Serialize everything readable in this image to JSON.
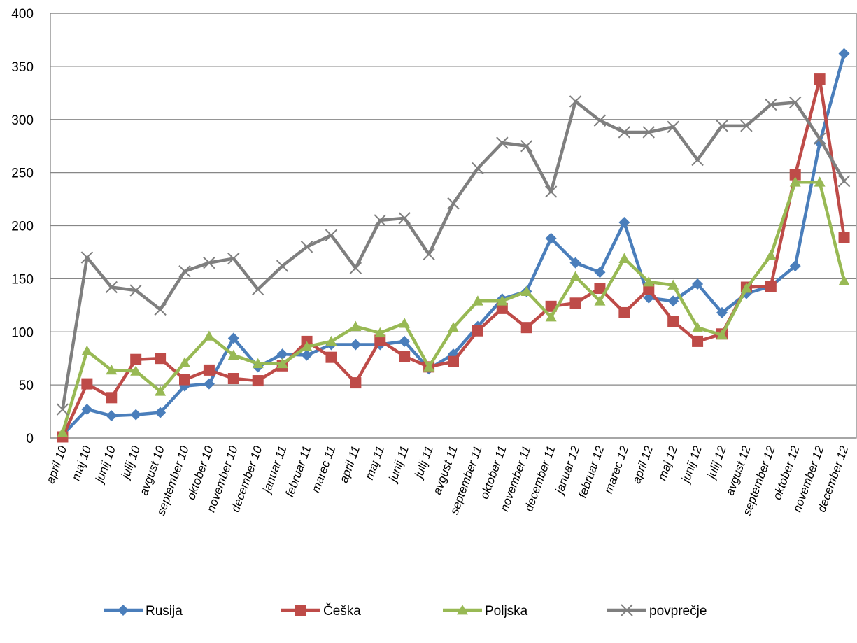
{
  "chart_data": {
    "type": "line",
    "categories": [
      "april 10",
      "maj 10",
      "junij 10",
      "julij 10",
      "avgust 10",
      "september 10",
      "oktober 10",
      "november 10",
      "december 10",
      "januar 11",
      "februar 11",
      "marec 11",
      "april 11",
      "maj 11",
      "junij 11",
      "julij 11",
      "avgust 11",
      "september 11",
      "oktober 11",
      "november 11",
      "december 11",
      "januar 12",
      "februar 12",
      "marec 12",
      "april 12",
      "maj 12",
      "junij 12",
      "julij 12",
      "avgust 12",
      "september 12",
      "oktober 12",
      "november 12",
      "december 12"
    ],
    "series": [
      {
        "name": "Rusija",
        "color": "#4a7ebb",
        "marker": "diamond",
        "values": [
          3,
          27,
          21,
          22,
          24,
          49,
          51,
          94,
          67,
          79,
          78,
          88,
          88,
          88,
          91,
          65,
          79,
          105,
          131,
          138,
          188,
          165,
          156,
          203,
          132,
          129,
          145,
          118,
          136,
          143,
          162,
          278,
          362
        ]
      },
      {
        "name": "Češka",
        "color": "#be4b48",
        "marker": "square",
        "values": [
          1,
          51,
          38,
          74,
          75,
          55,
          64,
          56,
          54,
          68,
          91,
          76,
          52,
          92,
          77,
          67,
          72,
          101,
          122,
          104,
          124,
          127,
          141,
          118,
          140,
          110,
          91,
          98,
          142,
          143,
          248,
          338,
          189
        ]
      },
      {
        "name": "Poljska",
        "color": "#98b954",
        "marker": "triangle",
        "values": [
          5,
          82,
          64,
          63,
          44,
          71,
          96,
          78,
          70,
          70,
          86,
          91,
          105,
          99,
          108,
          67,
          104,
          129,
          129,
          138,
          114,
          152,
          129,
          169,
          147,
          144,
          104,
          97,
          141,
          172,
          241,
          241,
          148
        ]
      },
      {
        "name": "povprečje",
        "color": "#7f7f7f",
        "marker": "x",
        "values": [
          27,
          170,
          142,
          139,
          121,
          157,
          165,
          169,
          140,
          162,
          180,
          191,
          160,
          205,
          207,
          173,
          221,
          254,
          278,
          275,
          232,
          317,
          299,
          288,
          288,
          293,
          262,
          294,
          294,
          314,
          316,
          282,
          242
        ]
      }
    ],
    "ylim": [
      0,
      400
    ],
    "yticks": [
      0,
      50,
      100,
      150,
      200,
      250,
      300,
      350,
      400
    ],
    "grid": true,
    "legend": "bottom"
  }
}
